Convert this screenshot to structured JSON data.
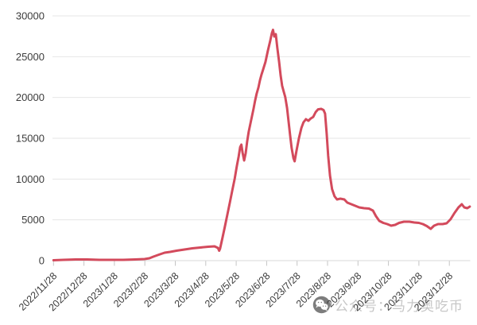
{
  "chart_data": {
    "type": "line",
    "title": "",
    "xlabel": "",
    "ylabel": "",
    "legend": false,
    "grid": true,
    "line_color": "#d34a5c",
    "y_axis": {
      "ticks": [
        0,
        5000,
        10000,
        15000,
        20000,
        25000,
        30000
      ],
      "range": [
        0,
        30000
      ]
    },
    "x_axis": {
      "tick_labels": [
        "2022/11/28",
        "2022/12/28",
        "2023/1/28",
        "2023/2/28",
        "2023/3/28",
        "2023/4/28",
        "2023/5/28",
        "2023/6/28",
        "2023/7/28",
        "2023/8/28",
        "2023/9/28",
        "2023/10/28",
        "2023/11/28",
        "2023/12/28"
      ],
      "unit": "months since 2022/11/28",
      "range": [
        0,
        13.7
      ]
    },
    "series_name": "value",
    "points": [
      [
        0.0,
        50
      ],
      [
        0.33,
        95
      ],
      [
        0.72,
        145
      ],
      [
        1.11,
        145
      ],
      [
        1.51,
        95
      ],
      [
        1.9,
        95
      ],
      [
        2.29,
        95
      ],
      [
        2.68,
        145
      ],
      [
        2.99,
        195
      ],
      [
        3.15,
        290
      ],
      [
        3.28,
        490
      ],
      [
        3.46,
        730
      ],
      [
        3.65,
        975
      ],
      [
        3.83,
        1070
      ],
      [
        4.04,
        1215
      ],
      [
        4.3,
        1365
      ],
      [
        4.56,
        1510
      ],
      [
        4.82,
        1605
      ],
      [
        5.08,
        1705
      ],
      [
        5.29,
        1755
      ],
      [
        5.4,
        1560
      ],
      [
        5.44,
        1220
      ],
      [
        5.47,
        1460
      ],
      [
        5.55,
        2825
      ],
      [
        5.63,
        4190
      ],
      [
        5.71,
        5650
      ],
      [
        5.79,
        7110
      ],
      [
        5.87,
        8570
      ],
      [
        5.95,
        10030
      ],
      [
        6.02,
        11590
      ],
      [
        6.08,
        12760
      ],
      [
        6.13,
        13930
      ],
      [
        6.17,
        14220
      ],
      [
        6.21,
        13245
      ],
      [
        6.26,
        12270
      ],
      [
        6.31,
        13150
      ],
      [
        6.36,
        14610
      ],
      [
        6.41,
        15780
      ],
      [
        6.47,
        16850
      ],
      [
        6.52,
        17725
      ],
      [
        6.57,
        18600
      ],
      [
        6.62,
        19575
      ],
      [
        6.67,
        20450
      ],
      [
        6.73,
        21230
      ],
      [
        6.78,
        22110
      ],
      [
        6.83,
        22790
      ],
      [
        6.88,
        23375
      ],
      [
        6.96,
        24350
      ],
      [
        7.04,
        25710
      ],
      [
        7.12,
        26980
      ],
      [
        7.17,
        27855
      ],
      [
        7.21,
        28290
      ],
      [
        7.25,
        27465
      ],
      [
        7.3,
        27760
      ],
      [
        7.35,
        26100
      ],
      [
        7.41,
        24350
      ],
      [
        7.46,
        22690
      ],
      [
        7.51,
        21425
      ],
      [
        7.56,
        20745
      ],
      [
        7.61,
        20060
      ],
      [
        7.67,
        18700
      ],
      [
        7.72,
        17045
      ],
      [
        7.77,
        15390
      ],
      [
        7.82,
        13830
      ],
      [
        7.88,
        12565
      ],
      [
        7.92,
        12175
      ],
      [
        7.98,
        13440
      ],
      [
        8.06,
        15000
      ],
      [
        8.14,
        16265
      ],
      [
        8.21,
        16945
      ],
      [
        8.29,
        17335
      ],
      [
        8.37,
        17140
      ],
      [
        8.45,
        17430
      ],
      [
        8.53,
        17625
      ],
      [
        8.61,
        18210
      ],
      [
        8.69,
        18550
      ],
      [
        8.79,
        18600
      ],
      [
        8.87,
        18455
      ],
      [
        8.92,
        18020
      ],
      [
        8.97,
        15585
      ],
      [
        9.02,
        12855
      ],
      [
        9.08,
        10420
      ],
      [
        9.15,
        8765
      ],
      [
        9.23,
        7890
      ],
      [
        9.31,
        7500
      ],
      [
        9.42,
        7600
      ],
      [
        9.55,
        7500
      ],
      [
        9.65,
        7110
      ],
      [
        9.78,
        6915
      ],
      [
        9.91,
        6720
      ],
      [
        10.04,
        6525
      ],
      [
        10.2,
        6430
      ],
      [
        10.36,
        6380
      ],
      [
        10.49,
        6135
      ],
      [
        10.59,
        5455
      ],
      [
        10.7,
        4870
      ],
      [
        10.83,
        4625
      ],
      [
        10.96,
        4480
      ],
      [
        11.09,
        4285
      ],
      [
        11.22,
        4385
      ],
      [
        11.35,
        4625
      ],
      [
        11.51,
        4770
      ],
      [
        11.69,
        4770
      ],
      [
        11.85,
        4675
      ],
      [
        12.0,
        4625
      ],
      [
        12.13,
        4480
      ],
      [
        12.26,
        4235
      ],
      [
        12.39,
        3895
      ],
      [
        12.5,
        4285
      ],
      [
        12.63,
        4480
      ],
      [
        12.78,
        4480
      ],
      [
        12.91,
        4575
      ],
      [
        13.04,
        5065
      ],
      [
        13.17,
        5845
      ],
      [
        13.3,
        6525
      ],
      [
        13.41,
        6915
      ],
      [
        13.49,
        6525
      ],
      [
        13.59,
        6430
      ],
      [
        13.67,
        6620
      ]
    ]
  },
  "watermark": {
    "icon": "wechat-icon",
    "text": "公众号：马力奥吃币"
  }
}
